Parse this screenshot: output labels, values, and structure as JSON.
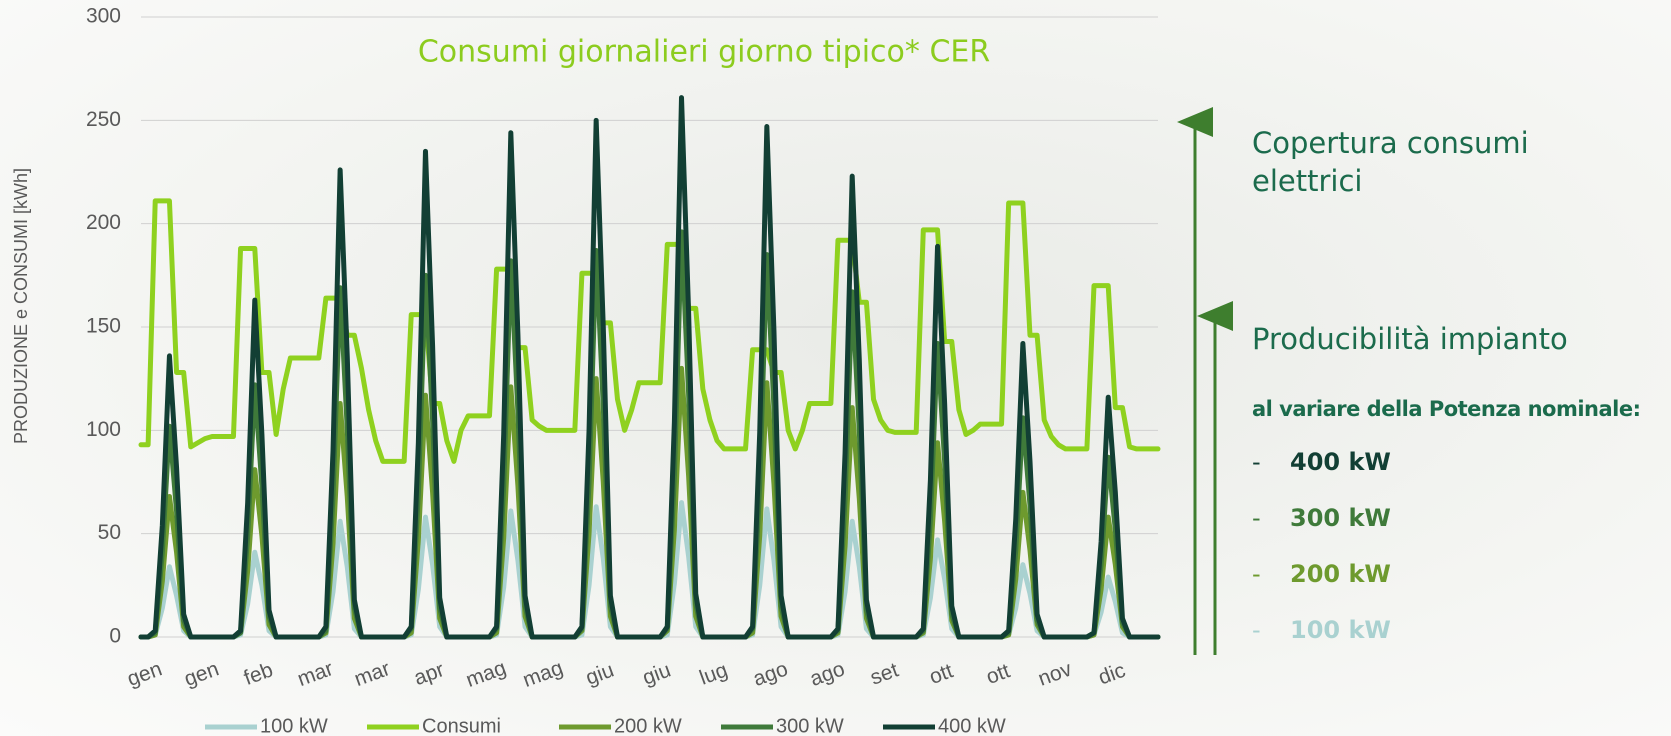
{
  "chart_data": {
    "type": "line",
    "title": "Consumi giornalieri giorno tipico* CER",
    "y_label": "PRODUZIONE e CONSUMI [kWh]",
    "categories": [
      "gen",
      null,
      null,
      null,
      null,
      null,
      null,
      null,
      "gen",
      null,
      null,
      null,
      null,
      null,
      null,
      null,
      "feb",
      null,
      null,
      null,
      null,
      null,
      null,
      null,
      "mar",
      null,
      null,
      null,
      null,
      null,
      null,
      null,
      "mar",
      null,
      null,
      null,
      null,
      null,
      null,
      null,
      "apr",
      null,
      null,
      null,
      null,
      null,
      null,
      null,
      "mag",
      null,
      null,
      null,
      null,
      null,
      null,
      null,
      "mag",
      null,
      null,
      null,
      null,
      null,
      null,
      null,
      "giu",
      null,
      null,
      null,
      null,
      null,
      null,
      null,
      "giu",
      null,
      null,
      null,
      null,
      null,
      null,
      null,
      "lug",
      null,
      null,
      null,
      null,
      null,
      null,
      null,
      "ago",
      null,
      null,
      null,
      null,
      null,
      null,
      null,
      "ago",
      null,
      null,
      null,
      null,
      null,
      null,
      null,
      "set",
      null,
      null,
      null,
      null,
      null,
      null,
      null,
      "ott",
      null,
      null,
      null,
      null,
      null,
      null,
      null,
      "ott",
      null,
      null,
      null,
      null,
      null,
      null,
      null,
      "nov",
      null,
      null,
      null,
      null,
      null,
      null,
      null,
      "dic",
      null,
      null,
      null,
      null,
      null,
      null,
      null
    ],
    "ylim": [
      0,
      300
    ],
    "yticks": [
      0,
      50,
      100,
      150,
      200,
      250,
      300
    ],
    "grid": true,
    "series": [
      {
        "name": "100 kW",
        "color": "#a9d1d0",
        "values": [
          0,
          0,
          1,
          14,
          34,
          20,
          3,
          0,
          0,
          0,
          0,
          0,
          0,
          0,
          1,
          16,
          41,
          25,
          3,
          0,
          0,
          0,
          0,
          0,
          0,
          0,
          1,
          22,
          56,
          34,
          4,
          0,
          0,
          0,
          0,
          0,
          0,
          0,
          1,
          23,
          58,
          35,
          5,
          0,
          0,
          0,
          0,
          0,
          0,
          0,
          1,
          24,
          61,
          37,
          5,
          0,
          0,
          0,
          0,
          0,
          0,
          0,
          1,
          25,
          63,
          38,
          5,
          0,
          0,
          0,
          0,
          0,
          0,
          0,
          1,
          26,
          65,
          39,
          5,
          0,
          0,
          0,
          0,
          0,
          0,
          0,
          1,
          25,
          62,
          37,
          5,
          0,
          0,
          0,
          0,
          0,
          0,
          0,
          1,
          22,
          56,
          34,
          4,
          0,
          0,
          0,
          0,
          0,
          0,
          0,
          1,
          19,
          47,
          28,
          4,
          0,
          0,
          0,
          0,
          0,
          0,
          0,
          1,
          14,
          35,
          21,
          3,
          0,
          0,
          0,
          0,
          0,
          0,
          0,
          1,
          12,
          29,
          17,
          2,
          0,
          0,
          0,
          0,
          0
        ]
      },
      {
        "name": "Consumi",
        "color": "#8fd11f",
        "values": [
          93,
          93,
          211,
          211,
          211,
          128,
          128,
          92,
          94,
          96,
          97,
          97,
          97,
          97,
          188,
          188,
          188,
          128,
          128,
          98,
          120,
          135,
          135,
          135,
          135,
          135,
          164,
          164,
          164,
          146,
          146,
          130,
          110,
          95,
          85,
          85,
          85,
          85,
          156,
          156,
          156,
          113,
          113,
          95,
          85,
          100,
          107,
          107,
          107,
          107,
          178,
          178,
          178,
          140,
          140,
          105,
          102,
          100,
          100,
          100,
          100,
          100,
          176,
          176,
          176,
          152,
          152,
          115,
          100,
          110,
          123,
          123,
          123,
          123,
          190,
          190,
          190,
          159,
          159,
          120,
          105,
          95,
          91,
          91,
          91,
          91,
          139,
          139,
          139,
          128,
          128,
          100,
          91,
          100,
          113,
          113,
          113,
          113,
          192,
          192,
          192,
          162,
          162,
          115,
          105,
          100,
          99,
          99,
          99,
          99,
          197,
          197,
          197,
          143,
          143,
          110,
          98,
          100,
          103,
          103,
          103,
          103,
          210,
          210,
          210,
          146,
          146,
          105,
          97,
          93,
          91,
          91,
          91,
          91,
          170,
          170,
          170,
          111,
          111,
          92,
          91,
          91,
          91,
          91
        ]
      },
      {
        "name": "200 kW",
        "color": "#6e9a2e",
        "values": [
          0,
          0,
          1,
          27,
          68,
          41,
          5,
          0,
          0,
          0,
          0,
          0,
          0,
          0,
          2,
          32,
          81,
          49,
          6,
          0,
          0,
          0,
          0,
          0,
          0,
          0,
          2,
          45,
          113,
          68,
          9,
          0,
          0,
          0,
          0,
          0,
          0,
          0,
          2,
          47,
          117,
          70,
          9,
          0,
          0,
          0,
          0,
          0,
          0,
          0,
          2,
          48,
          121,
          73,
          10,
          0,
          0,
          0,
          0,
          0,
          0,
          0,
          3,
          50,
          125,
          75,
          10,
          0,
          0,
          0,
          0,
          0,
          0,
          0,
          3,
          52,
          130,
          78,
          10,
          0,
          0,
          0,
          0,
          0,
          0,
          0,
          2,
          49,
          123,
          74,
          10,
          0,
          0,
          0,
          0,
          0,
          0,
          0,
          2,
          44,
          111,
          67,
          9,
          0,
          0,
          0,
          0,
          0,
          0,
          0,
          2,
          38,
          94,
          56,
          8,
          0,
          0,
          0,
          0,
          0,
          0,
          0,
          1,
          28,
          70,
          42,
          6,
          0,
          0,
          0,
          0,
          0,
          0,
          0,
          1,
          23,
          58,
          35,
          5,
          0,
          0,
          0,
          0,
          0
        ]
      },
      {
        "name": "300 kW",
        "color": "#3f7a3a",
        "values": [
          0,
          0,
          2,
          41,
          102,
          61,
          8,
          0,
          0,
          0,
          0,
          0,
          0,
          0,
          2,
          49,
          122,
          73,
          10,
          0,
          0,
          0,
          0,
          0,
          0,
          0,
          3,
          68,
          169,
          101,
          14,
          0,
          0,
          0,
          0,
          0,
          0,
          0,
          4,
          70,
          175,
          105,
          14,
          0,
          0,
          0,
          0,
          0,
          0,
          0,
          4,
          73,
          182,
          109,
          15,
          0,
          0,
          0,
          0,
          0,
          0,
          0,
          4,
          75,
          187,
          112,
          15,
          0,
          0,
          0,
          0,
          0,
          0,
          0,
          4,
          78,
          196,
          118,
          16,
          0,
          0,
          0,
          0,
          0,
          0,
          0,
          4,
          74,
          185,
          111,
          15,
          0,
          0,
          0,
          0,
          0,
          0,
          0,
          3,
          67,
          167,
          100,
          13,
          0,
          0,
          0,
          0,
          0,
          0,
          0,
          3,
          57,
          142,
          85,
          11,
          0,
          0,
          0,
          0,
          0,
          0,
          0,
          2,
          42,
          106,
          64,
          8,
          0,
          0,
          0,
          0,
          0,
          0,
          0,
          2,
          35,
          87,
          52,
          7,
          0,
          0,
          0,
          0,
          0
        ]
      },
      {
        "name": "400 kW",
        "color": "#123f34",
        "values": [
          0,
          0,
          3,
          54,
          136,
          82,
          11,
          0,
          0,
          0,
          0,
          0,
          0,
          0,
          3,
          65,
          163,
          98,
          13,
          0,
          0,
          0,
          0,
          0,
          0,
          0,
          5,
          90,
          226,
          136,
          18,
          0,
          0,
          0,
          0,
          0,
          0,
          0,
          5,
          94,
          235,
          141,
          19,
          0,
          0,
          0,
          0,
          0,
          0,
          0,
          5,
          98,
          244,
          146,
          20,
          0,
          0,
          0,
          0,
          0,
          0,
          0,
          5,
          100,
          250,
          150,
          20,
          0,
          0,
          0,
          0,
          0,
          0,
          0,
          5,
          104,
          261,
          157,
          21,
          0,
          0,
          0,
          0,
          0,
          0,
          0,
          5,
          99,
          247,
          148,
          20,
          0,
          0,
          0,
          0,
          0,
          0,
          0,
          4,
          89,
          223,
          134,
          18,
          0,
          0,
          0,
          0,
          0,
          0,
          0,
          4,
          76,
          189,
          113,
          15,
          0,
          0,
          0,
          0,
          0,
          0,
          0,
          3,
          57,
          142,
          85,
          11,
          0,
          0,
          0,
          0,
          0,
          0,
          0,
          2,
          46,
          116,
          70,
          9,
          0,
          0,
          0,
          0,
          0
        ]
      }
    ]
  },
  "side_panel": {
    "heading": "Copertura consumi elettrici",
    "subheading": "Producibilità impianto",
    "note": "al variare della Potenza nominale:",
    "items": [
      {
        "label": "400 kW",
        "color": "#123f34"
      },
      {
        "label": "300 kW",
        "color": "#3f7a3a"
      },
      {
        "label": "200 kW",
        "color": "#6e9a2e"
      },
      {
        "label": "100 kW",
        "color": "#a9d1d0"
      }
    ]
  }
}
